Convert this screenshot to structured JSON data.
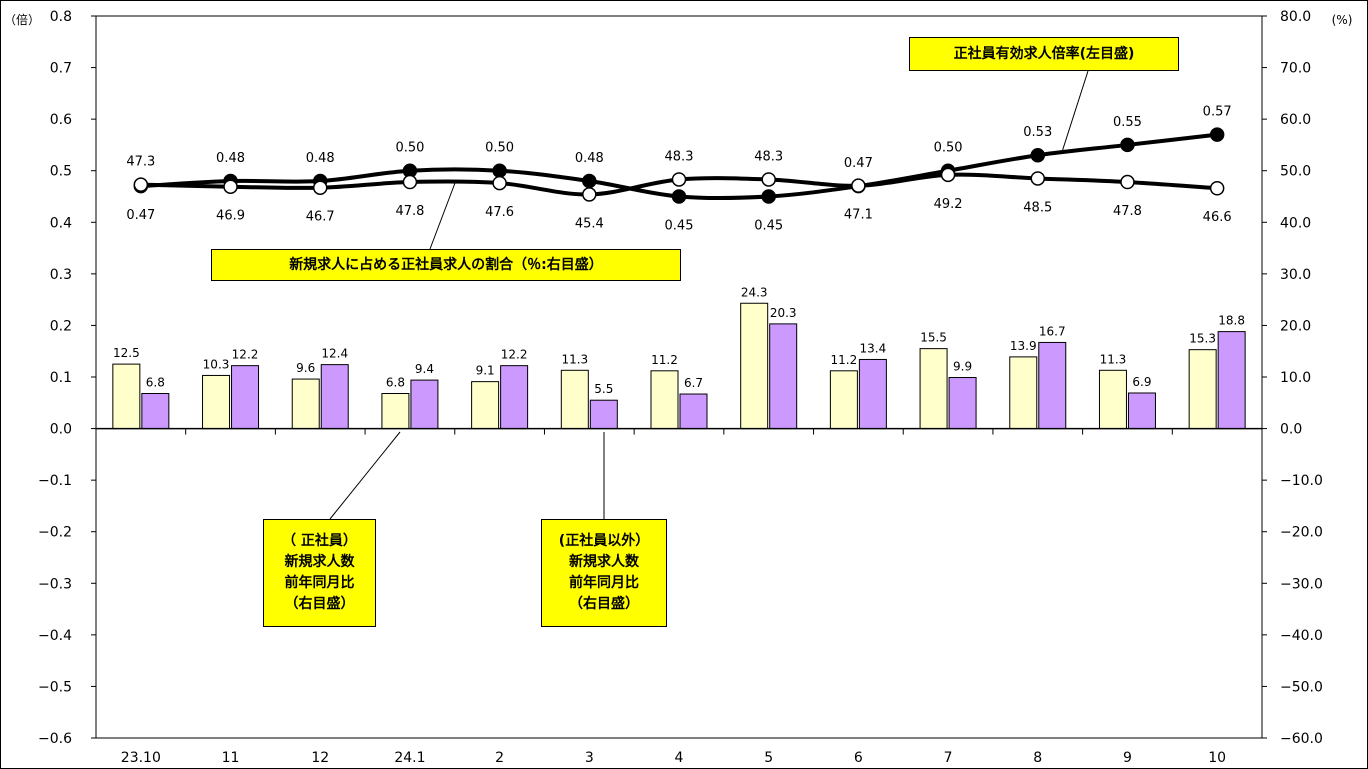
{
  "chart_data": {
    "type": "bar+line",
    "categories": [
      "23.10",
      "11",
      "12",
      "24.1",
      "2",
      "3",
      "4",
      "5",
      "6",
      "7",
      "8",
      "9",
      "10"
    ],
    "left_axis": {
      "unit": "（倍）",
      "min": -0.6,
      "max": 0.8,
      "step": 0.1,
      "ticks": [
        "-0.6",
        "-0.5",
        "-0.4",
        "-0.3",
        "-0.2",
        "-0.1",
        "0.0",
        "0.1",
        "0.2",
        "0.3",
        "0.4",
        "0.5",
        "0.6",
        "0.7",
        "0.8"
      ]
    },
    "right_axis": {
      "unit": "(%)",
      "min": -60,
      "max": 80,
      "step": 10,
      "ticks": [
        "-60.0",
        "-50.0",
        "-40.0",
        "-30.0",
        "-20.0",
        "-10.0",
        "0.0",
        "10.0",
        "20.0",
        "30.0",
        "40.0",
        "50.0",
        "60.0",
        "70.0",
        "80.0"
      ]
    },
    "bars": [
      {
        "name": "正社員 新規求人数 前年同月比",
        "axis": "right",
        "color": "#ffffcc",
        "values": [
          12.5,
          10.3,
          9.6,
          6.8,
          9.1,
          11.3,
          11.2,
          24.3,
          11.2,
          15.5,
          13.9,
          11.3,
          15.3
        ],
        "labels": [
          "12.5",
          "10.3",
          "9.6",
          "6.8",
          "9.1",
          "11.3",
          "11.2",
          "24.3",
          "11.2",
          "15.5",
          "13.9",
          "11.3",
          "15.3"
        ]
      },
      {
        "name": "正社員以外 新規求人数 前年同月比",
        "axis": "right",
        "color": "#cc99ff",
        "values": [
          6.8,
          12.2,
          12.4,
          9.4,
          12.2,
          5.5,
          6.7,
          20.3,
          13.4,
          9.9,
          16.7,
          6.9,
          18.8
        ],
        "labels": [
          "6.8",
          "12.2",
          "12.4",
          "9.4",
          "12.2",
          "5.5",
          "6.7",
          "20.3",
          "13.4",
          "9.9",
          "16.7",
          "6.9",
          "18.8"
        ]
      }
    ],
    "lines": [
      {
        "name": "正社員有効求人倍率",
        "axis": "left",
        "marker": "filled",
        "values": [
          0.47,
          0.48,
          0.48,
          0.5,
          0.5,
          0.48,
          0.45,
          0.45,
          0.47,
          0.5,
          0.53,
          0.55,
          0.57
        ],
        "labels": [
          "0.47",
          "0.48",
          "0.48",
          "0.50",
          "0.50",
          "0.48",
          "0.45",
          "0.45",
          "0.47",
          "0.50",
          "0.53",
          "0.55",
          "0.57"
        ]
      },
      {
        "name": "新規求人に占める正社員求人の割合",
        "axis": "right",
        "marker": "open",
        "values": [
          47.3,
          46.9,
          46.7,
          47.8,
          47.6,
          45.4,
          48.3,
          48.3,
          47.1,
          49.2,
          48.5,
          47.8,
          46.6
        ],
        "labels": [
          "47.3",
          "46.9",
          "46.7",
          "47.8",
          "47.6",
          "45.4",
          "48.3",
          "48.3",
          "47.1",
          "49.2",
          "48.5",
          "47.8",
          "46.6"
        ]
      }
    ],
    "callouts": {
      "ratio_line": "正社員有効求人倍率(左目盛)",
      "share_line": "新規求人に占める正社員求人の割合（％:右目盛）",
      "regular_bar": [
        "（ 正社員）",
        "新規求人数",
        "前年同月比",
        "（右目盛）"
      ],
      "nonregular_bar": [
        "(正社員以外）",
        "新規求人数",
        "前年同月比",
        "（右目盛）"
      ]
    }
  }
}
